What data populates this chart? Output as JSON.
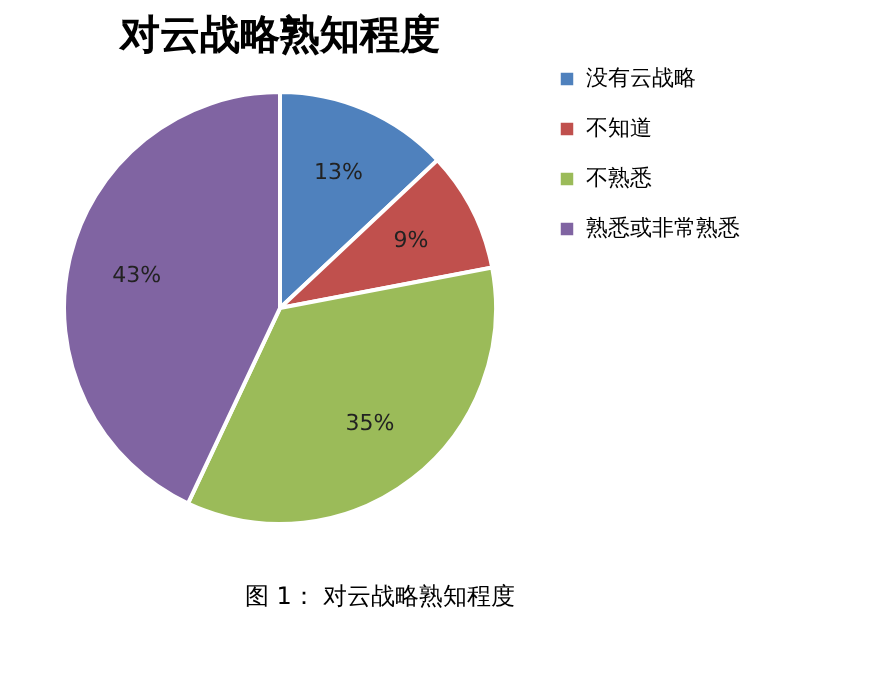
{
  "chart_data": {
    "type": "pie",
    "title": "对云战略熟知程度",
    "categories": [
      "没有云战略",
      "不知道",
      "不熟悉",
      "熟悉或非常熟悉"
    ],
    "values": [
      13,
      9,
      35,
      43
    ],
    "colors": [
      "#4f81bd",
      "#c0504d",
      "#9bbb59",
      "#8064a2"
    ],
    "value_labels": [
      "13%",
      "9%",
      "35%",
      "43%"
    ],
    "legend": "right",
    "annotations": [
      "图 1：  对云战略熟知程度"
    ]
  }
}
